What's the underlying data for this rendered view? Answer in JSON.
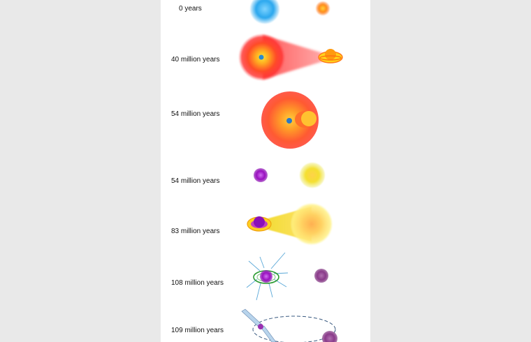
{
  "stages": [
    {
      "label": "0 years"
    },
    {
      "label": "40 million years"
    },
    {
      "label": "54 million years"
    },
    {
      "label": "54 million years"
    },
    {
      "label": "83 million years"
    },
    {
      "label": "108 million years"
    },
    {
      "label": "109 million years"
    }
  ],
  "colors": {
    "blue_star": "#2aa7ee",
    "red_giant": "#ff5a28",
    "yellow_star": "#f0e020",
    "orange_star": "#ff9a10",
    "purple_star": "#9a10c0",
    "dim_purple_star": "#8a3a8a",
    "pulsar_beam": "#b8d4ec",
    "orbit": "#3a5a80",
    "ring_green": "#2a9a30",
    "ray": "#5aa8d8"
  }
}
